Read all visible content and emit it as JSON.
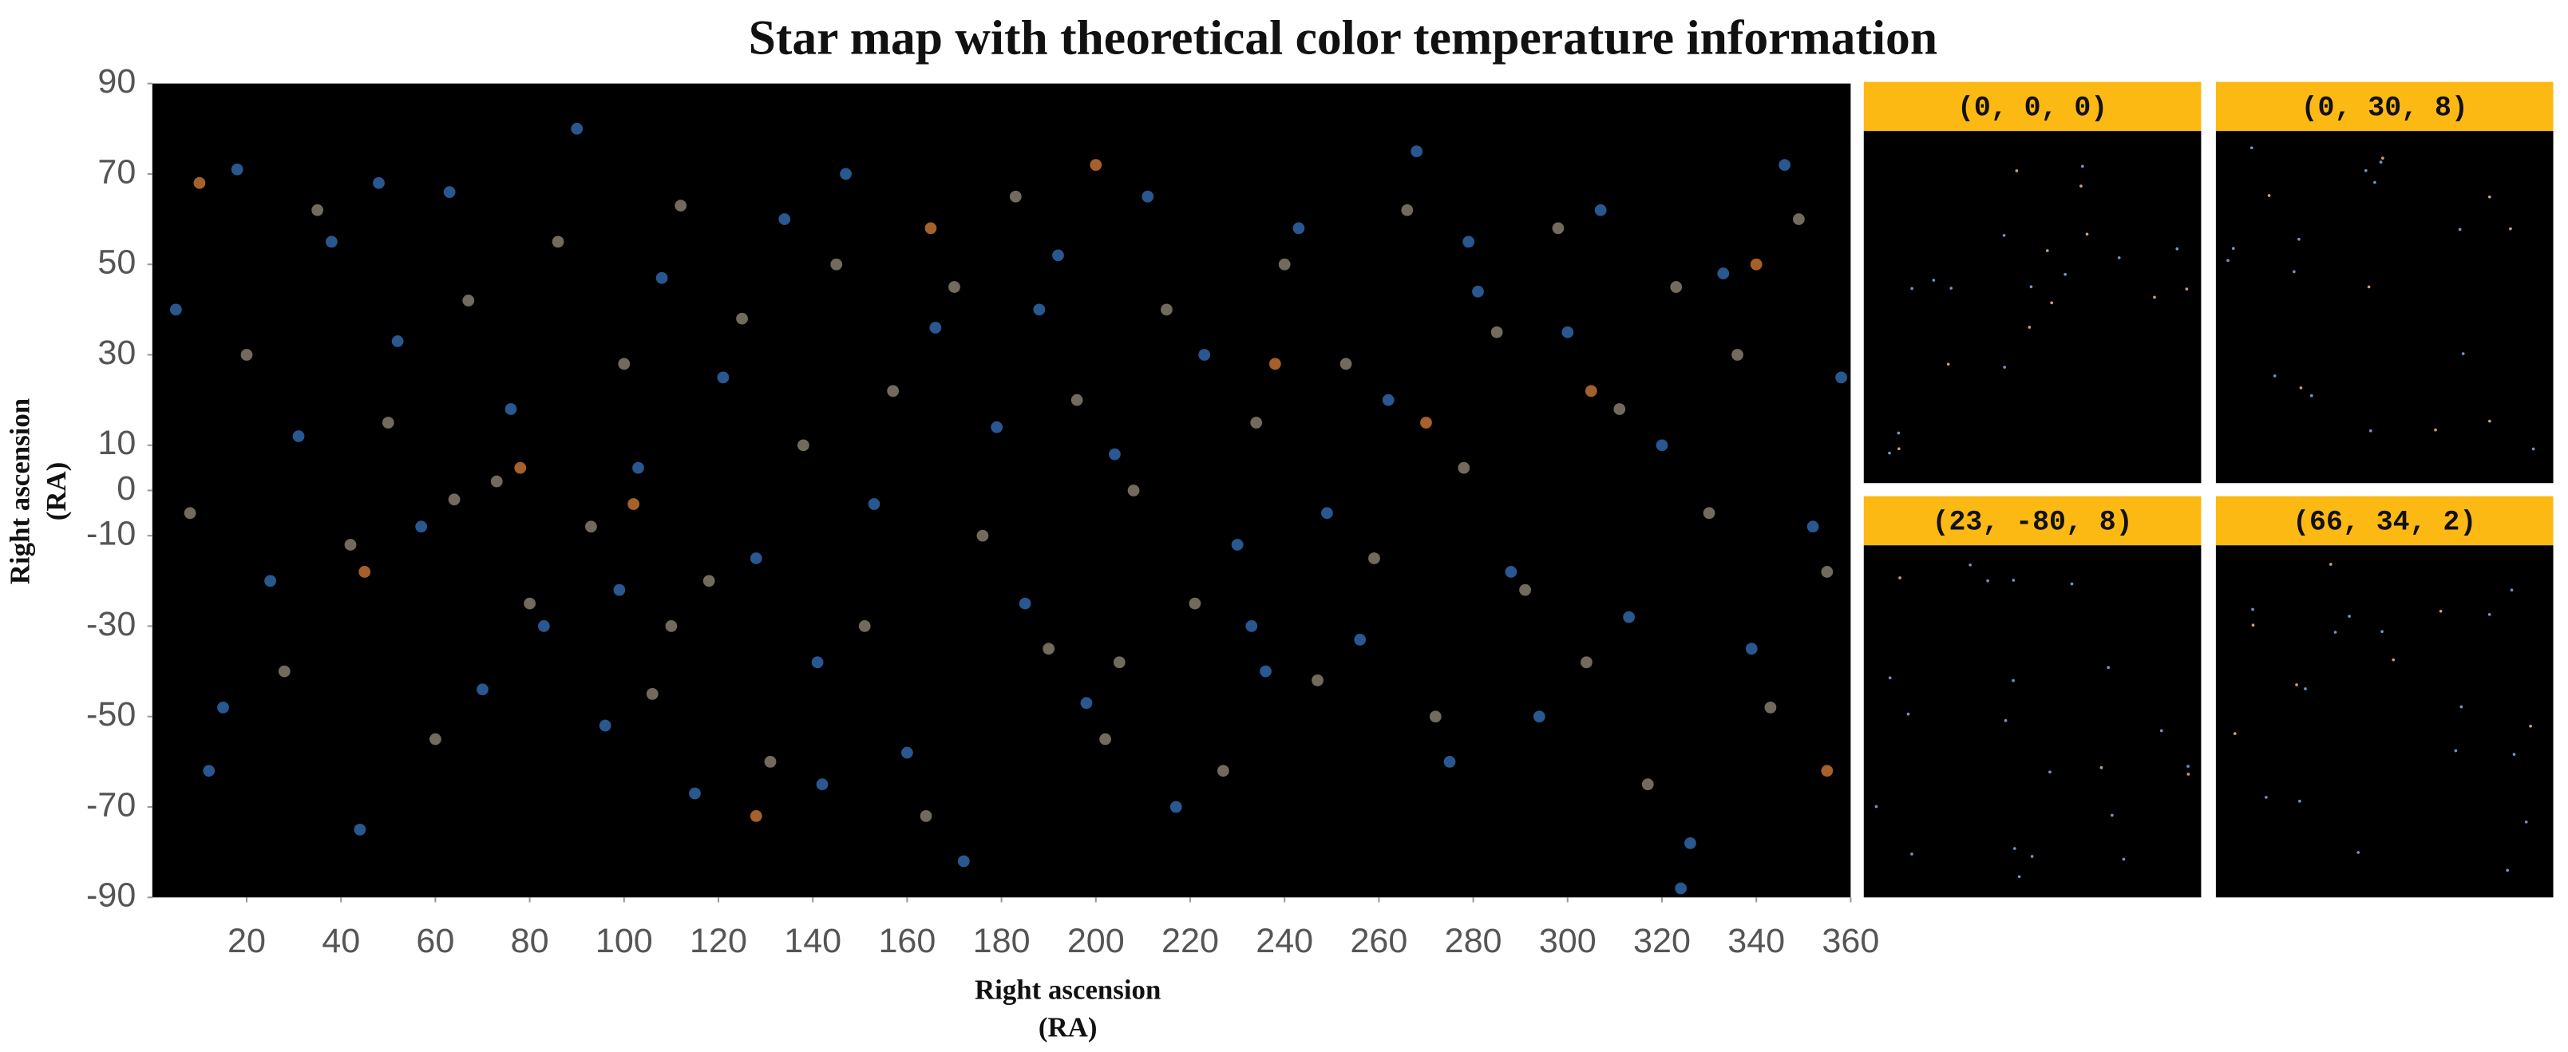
{
  "chart_data": {
    "type": "scatter",
    "title": "Star map with theoretical color temperature information",
    "xlabel": [
      "Right ascension",
      "(RA)"
    ],
    "ylabel": [
      "Right ascension",
      "(RA)"
    ],
    "xlim": [
      0,
      360
    ],
    "xticks": [
      20,
      40,
      60,
      80,
      100,
      120,
      140,
      160,
      180,
      200,
      220,
      240,
      260,
      280,
      300,
      320,
      340,
      360
    ],
    "ylim": [
      -90,
      90
    ],
    "yticks": [
      90,
      70,
      50,
      30,
      10,
      0,
      -10,
      -30,
      -50,
      -70,
      -90
    ],
    "background": "#000000",
    "series": [
      {
        "color": "#2d609e",
        "x": [
          5,
          12,
          18,
          25,
          31,
          38,
          44,
          52,
          57,
          63,
          70,
          76,
          83,
          90,
          96,
          103,
          108,
          115,
          121,
          128,
          134,
          141,
          147,
          153,
          160,
          166,
          172,
          179,
          185,
          192,
          198,
          204,
          211,
          217,
          223,
          230,
          236,
          243,
          249,
          256,
          262,
          268,
          275,
          281,
          288,
          294,
          300,
          307,
          313,
          320,
          326,
          333,
          339,
          346,
          352,
          358,
          15,
          48,
          99,
          142,
          188,
          233,
          279,
          324
        ],
        "values": [
          40,
          -62,
          71,
          -20,
          12,
          55,
          -75,
          33,
          -8,
          66,
          -44,
          18,
          -30,
          80,
          -52,
          5,
          47,
          -67,
          25,
          -15,
          60,
          -38,
          70,
          -3,
          -58,
          36,
          -82,
          14,
          -25,
          52,
          -47,
          8,
          65,
          -70,
          30,
          -12,
          -40,
          58,
          -5,
          -33,
          20,
          75,
          -60,
          44,
          -18,
          -50,
          35,
          62,
          -28,
          10,
          -78,
          48,
          -35,
          72,
          -8,
          25,
          -48,
          68,
          -22,
          -65,
          40,
          -30,
          55,
          -88
        ]
      },
      {
        "color": "#7e7666",
        "x": [
          8,
          20,
          28,
          35,
          42,
          50,
          60,
          67,
          73,
          80,
          86,
          93,
          100,
          106,
          112,
          118,
          125,
          131,
          138,
          145,
          151,
          157,
          164,
          170,
          176,
          183,
          190,
          196,
          202,
          208,
          215,
          221,
          227,
          234,
          240,
          247,
          253,
          259,
          266,
          272,
          278,
          285,
          291,
          298,
          304,
          311,
          317,
          323,
          330,
          336,
          343,
          349,
          355,
          64,
          110,
          205
        ],
        "values": [
          -5,
          30,
          -40,
          62,
          -12,
          15,
          -55,
          42,
          2,
          -25,
          55,
          -8,
          28,
          -45,
          63,
          -20,
          38,
          -60,
          10,
          50,
          -30,
          22,
          -72,
          45,
          -10,
          65,
          -35,
          20,
          -55,
          0,
          40,
          -25,
          -62,
          15,
          50,
          -42,
          28,
          -15,
          62,
          -50,
          5,
          35,
          -22,
          58,
          -38,
          18,
          -65,
          45,
          -5,
          30,
          -48,
          60,
          -18,
          -2,
          -30,
          -38
        ]
      },
      {
        "color": "#b86a2f",
        "x": [
          10,
          45,
          78,
          102,
          128,
          165,
          200,
          238,
          270,
          305,
          340,
          355
        ],
        "values": [
          68,
          -18,
          5,
          -3,
          -72,
          58,
          72,
          28,
          15,
          22,
          50,
          -62
        ]
      }
    ]
  },
  "panels": [
    {
      "label": "(0, 0, 0)"
    },
    {
      "label": "(0, 30, 8)"
    },
    {
      "label": "(23, -80, 8)"
    },
    {
      "label": "(66, 34, 2)"
    }
  ]
}
